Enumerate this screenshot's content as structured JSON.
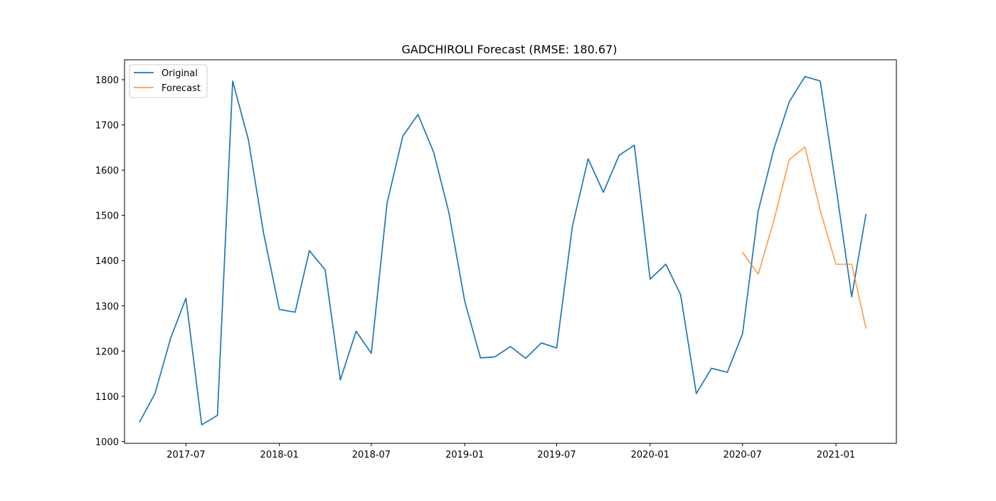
{
  "chart_data": {
    "type": "line",
    "title": "GADCHIROLI Forecast (RMSE: 180.67)",
    "xlabel": "",
    "ylabel": "",
    "x_axis_type": "date",
    "xlim": [
      "2017-03-02",
      "2021-04-30"
    ],
    "ylim": [
      996,
      1844
    ],
    "yticks": [
      1000,
      1100,
      1200,
      1300,
      1400,
      1500,
      1600,
      1700,
      1800
    ],
    "xticks": [
      {
        "date": "2017-07-01",
        "label": "2017-07"
      },
      {
        "date": "2018-01-01",
        "label": "2018-01"
      },
      {
        "date": "2018-07-01",
        "label": "2018-07"
      },
      {
        "date": "2019-01-01",
        "label": "2019-01"
      },
      {
        "date": "2019-07-01",
        "label": "2019-07"
      },
      {
        "date": "2020-01-01",
        "label": "2020-01"
      },
      {
        "date": "2020-07-01",
        "label": "2020-07"
      },
      {
        "date": "2021-01-01",
        "label": "2021-01"
      }
    ],
    "grid": false,
    "legend_position": "top-left",
    "series": [
      {
        "name": "Original",
        "color": "#1f77b4",
        "x": [
          "2017-04-01",
          "2017-05-01",
          "2017-06-01",
          "2017-07-01",
          "2017-08-01",
          "2017-09-01",
          "2017-10-01",
          "2017-11-01",
          "2017-12-01",
          "2018-01-01",
          "2018-02-01",
          "2018-03-01",
          "2018-04-01",
          "2018-05-01",
          "2018-06-01",
          "2018-07-01",
          "2018-08-01",
          "2018-09-01",
          "2018-10-01",
          "2018-11-01",
          "2018-12-01",
          "2019-01-01",
          "2019-02-01",
          "2019-03-01",
          "2019-04-01",
          "2019-05-01",
          "2019-06-01",
          "2019-07-01",
          "2019-08-01",
          "2019-09-01",
          "2019-10-01",
          "2019-11-01",
          "2019-12-01",
          "2020-01-01",
          "2020-02-01",
          "2020-03-01",
          "2020-04-01",
          "2020-05-01",
          "2020-06-01",
          "2020-07-01",
          "2020-08-01",
          "2020-09-01",
          "2020-10-01",
          "2020-11-01",
          "2020-12-01",
          "2021-01-01",
          "2021-02-01",
          "2021-03-01"
        ],
        "values": [
          1044,
          1106,
          1229,
          1317,
          1037,
          1058,
          1797,
          1667,
          1460,
          1292,
          1286,
          1422,
          1380,
          1136,
          1244,
          1195,
          1527,
          1675,
          1723,
          1639,
          1505,
          1310,
          1185,
          1187,
          1210,
          1184,
          1218,
          1207,
          1476,
          1625,
          1551,
          1633,
          1655,
          1359,
          1392,
          1325,
          1106,
          1162,
          1153,
          1238,
          1510,
          1648,
          1751,
          1807,
          1797,
          1563,
          1320,
          1502
        ]
      },
      {
        "name": "Forecast",
        "color": "#ff7f0e",
        "x": [
          "2020-07-01",
          "2020-08-01",
          "2020-09-01",
          "2020-10-01",
          "2020-11-01",
          "2020-12-01",
          "2021-01-01",
          "2021-02-01",
          "2021-03-01"
        ],
        "values": [
          1418,
          1370,
          1490,
          1623,
          1651,
          1511,
          1392,
          1392,
          1251
        ]
      }
    ]
  }
}
